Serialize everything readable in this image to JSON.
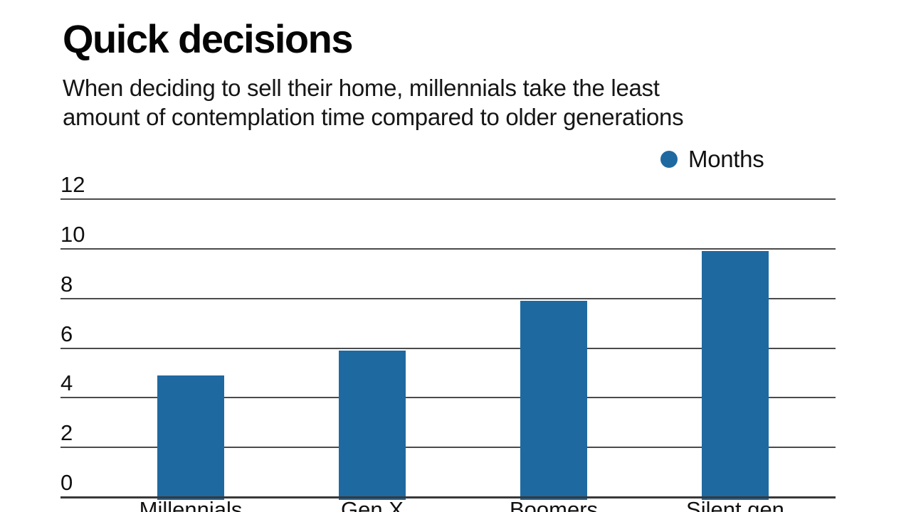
{
  "title": "Quick decisions",
  "subtitle_lines": [
    "When deciding to sell their home, millennials take the least",
    "amount of contemplation time compared to older generations"
  ],
  "legend": {
    "label": "Months",
    "marker_color": "#1f69a1"
  },
  "chart_data": {
    "type": "bar",
    "categories": [
      "Millennials",
      "Gen X",
      "Boomers",
      "Silent gen"
    ],
    "series": [
      {
        "name": "Months",
        "values": [
          5,
          6,
          8,
          10
        ]
      }
    ],
    "title": "Quick decisions",
    "subtitle": "When deciding to sell their home, millennials take the least amount of contemplation time compared to older generations",
    "xlabel": "",
    "ylabel": "",
    "ylim": [
      0,
      12
    ],
    "yticks": [
      0,
      2,
      4,
      6,
      8,
      10,
      12
    ],
    "grid": true,
    "legend_position": "top-right",
    "bar_color": "#1f69a1",
    "background_color": "#ffffff",
    "gridline_color": "#4b4b4b",
    "text_color": "#111111"
  }
}
